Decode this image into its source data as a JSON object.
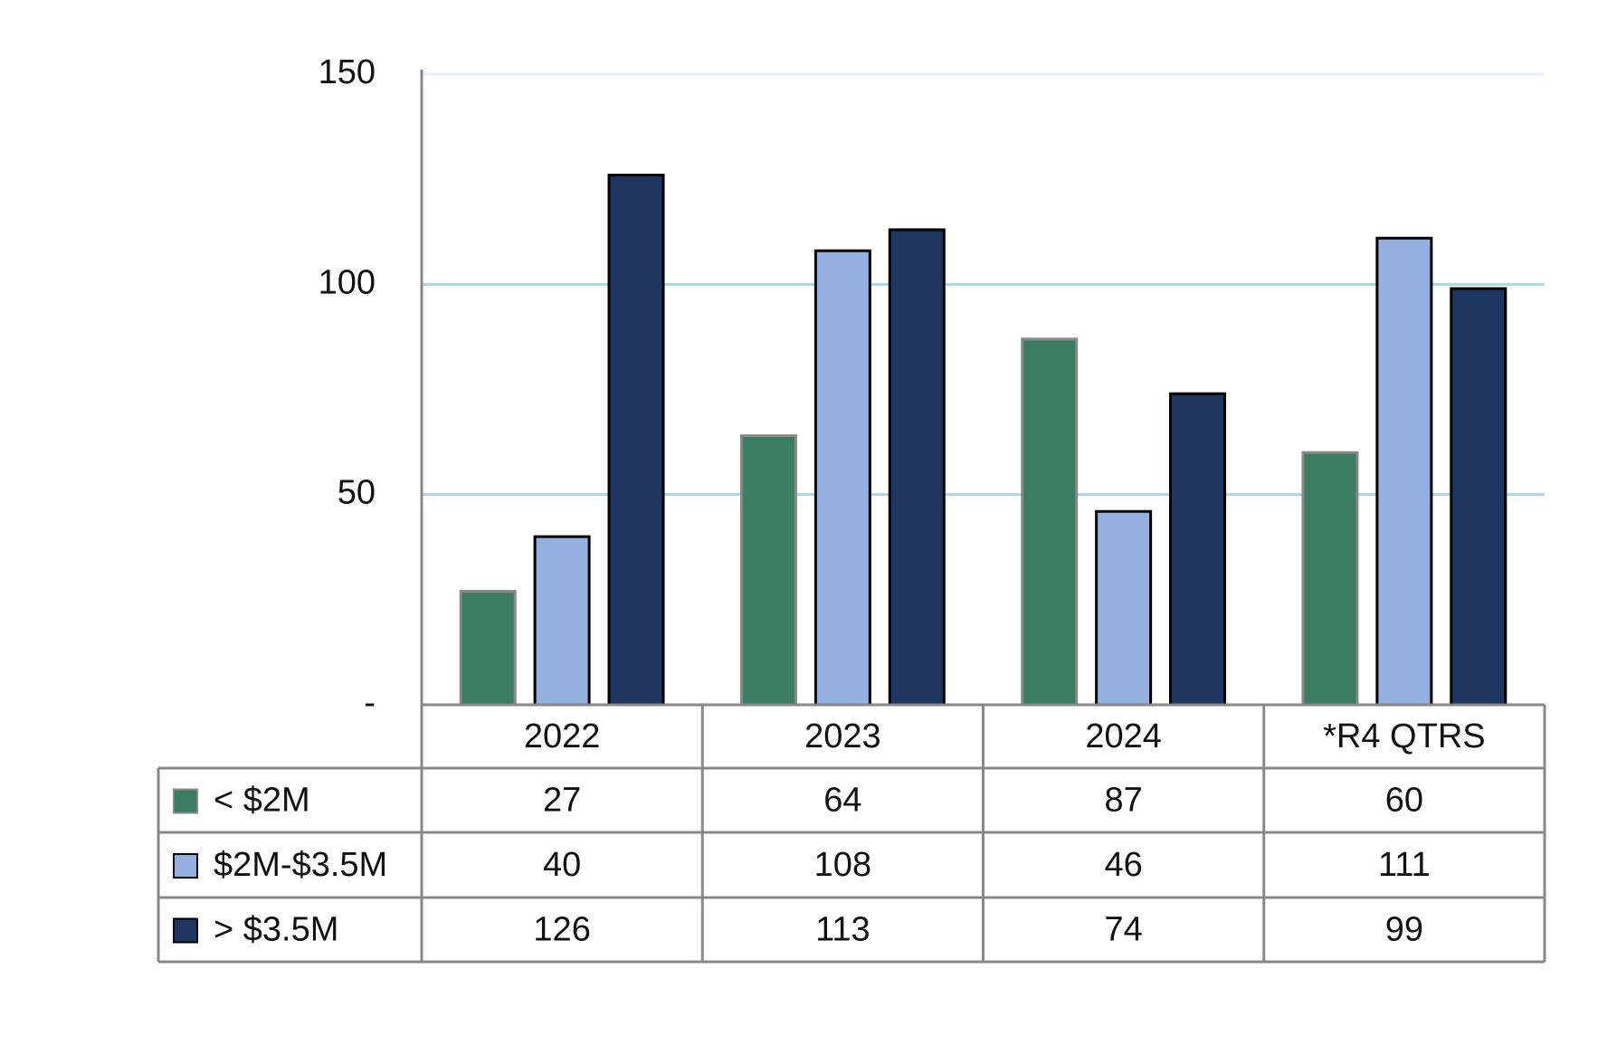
{
  "chart_data": {
    "type": "bar",
    "categories": [
      "2022",
      "2023",
      "2024",
      "*R4 QTRS"
    ],
    "series": [
      {
        "name": "< $2M",
        "color": "#3a7d62",
        "values": [
          27,
          64,
          87,
          60
        ]
      },
      {
        "name": "$2M-$3.5M",
        "color": "#95b0de",
        "values": [
          40,
          108,
          46,
          111
        ]
      },
      {
        "name": "> $3.5M",
        "color": "#1f3661",
        "values": [
          126,
          113,
          74,
          99
        ]
      }
    ],
    "ylim": [
      0,
      150
    ],
    "yticks": [
      {
        "value": 0,
        "label": "-"
      },
      50,
      100,
      150
    ],
    "grid": true
  }
}
